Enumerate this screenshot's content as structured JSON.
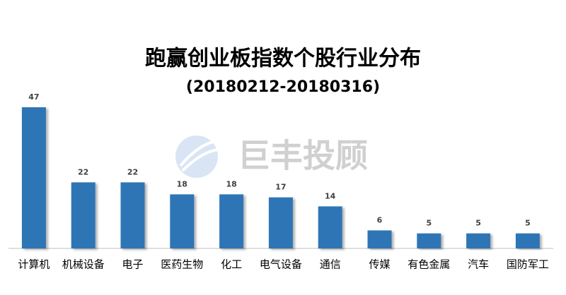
{
  "chart_data": {
    "type": "bar",
    "title": "跑赢创业板指数个股行业分布",
    "subtitle": "(20180212-20180316)",
    "categories": [
      "计算机",
      "机械设备",
      "电子",
      "医药生物",
      "化工",
      "电气设备",
      "通信",
      "传媒",
      "有色金属",
      "汽车",
      "国防军工"
    ],
    "values": [
      47,
      22,
      22,
      18,
      18,
      17,
      14,
      6,
      5,
      5,
      5
    ],
    "color": "#2e75b6",
    "watermark": "巨丰投顾"
  }
}
